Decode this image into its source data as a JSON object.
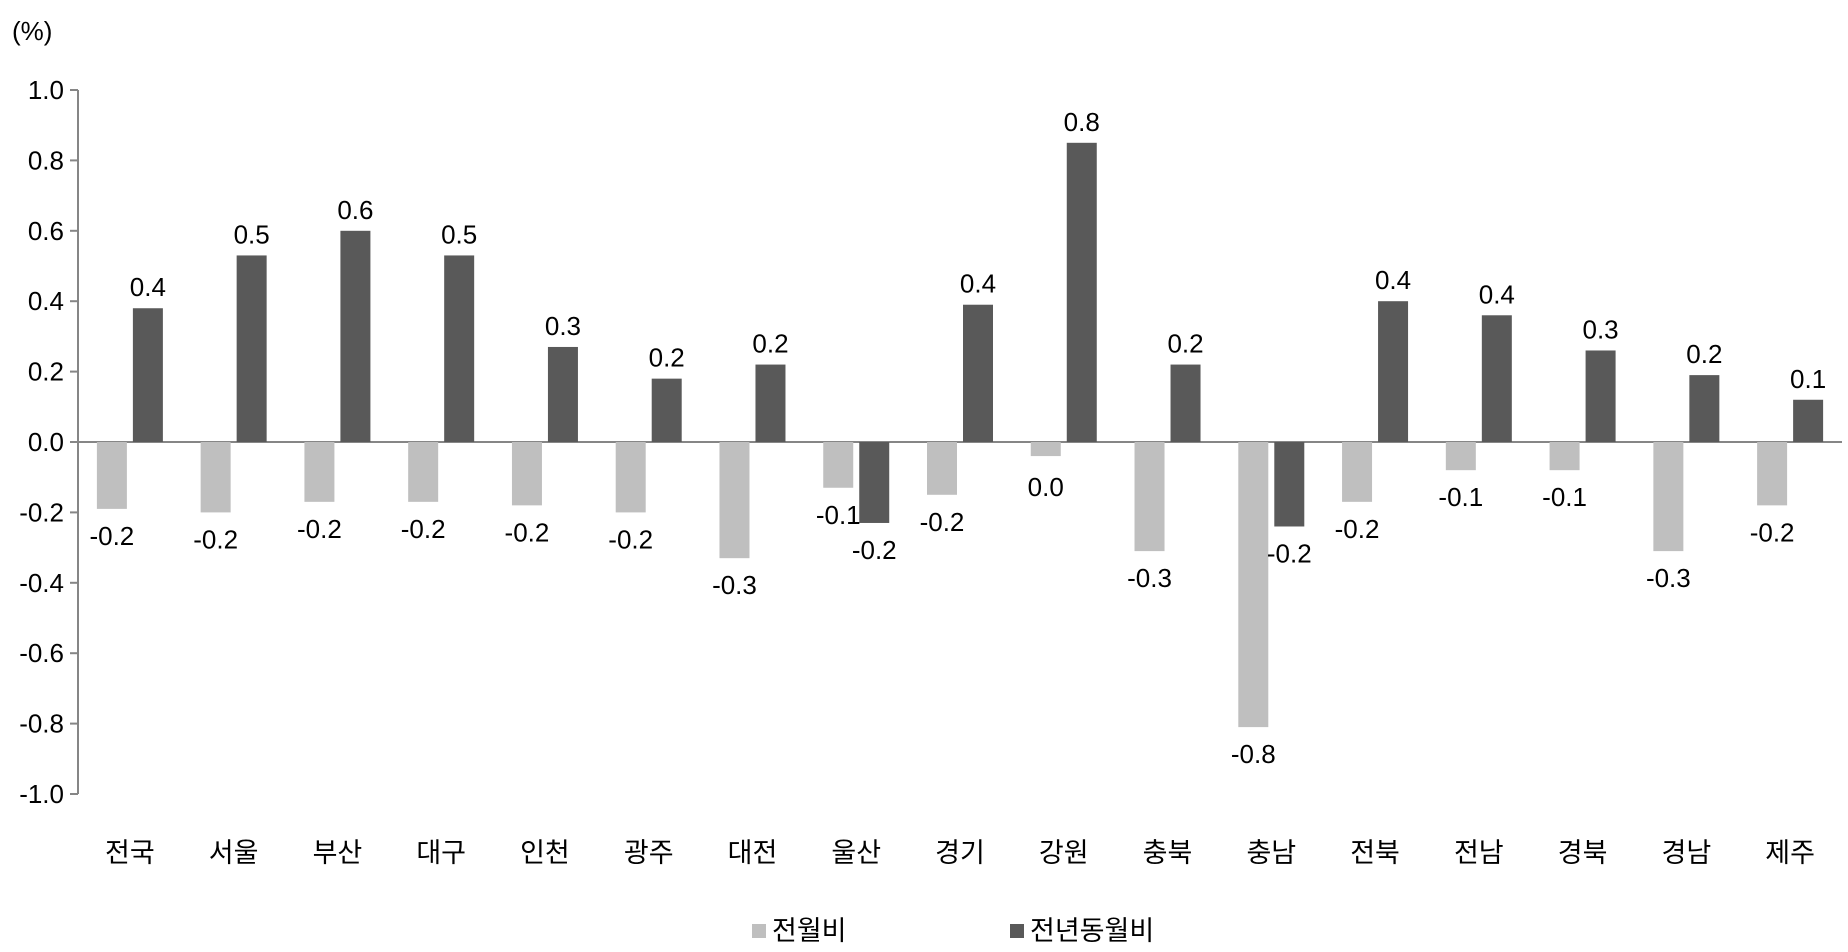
{
  "chart_data": {
    "type": "bar",
    "unit_label": "(%)",
    "categories": [
      "전국",
      "서울",
      "부산",
      "대구",
      "인천",
      "광주",
      "대전",
      "울산",
      "경기",
      "강원",
      "충북",
      "충남",
      "전북",
      "전남",
      "경북",
      "경남",
      "제주"
    ],
    "series": [
      {
        "name": "전월비",
        "color": "#bfbfbf",
        "values": [
          -0.19,
          -0.2,
          -0.17,
          -0.17,
          -0.18,
          -0.2,
          -0.33,
          -0.13,
          -0.15,
          -0.04,
          -0.31,
          -0.81,
          -0.17,
          -0.08,
          -0.08,
          -0.31,
          -0.18
        ],
        "labels": [
          "-0.2",
          "-0.2",
          "-0.2",
          "-0.2",
          "-0.2",
          "-0.2",
          "-0.3",
          "-0.1",
          "-0.2",
          "0.0",
          "-0.3",
          "-0.8",
          "-0.2",
          "-0.1",
          "-0.1",
          "-0.3",
          "-0.2"
        ]
      },
      {
        "name": "전년동월비",
        "color": "#595959",
        "values": [
          0.38,
          0.53,
          0.6,
          0.53,
          0.27,
          0.18,
          0.22,
          -0.23,
          0.39,
          0.85,
          0.22,
          -0.24,
          0.4,
          0.36,
          0.26,
          0.19,
          0.12
        ],
        "labels": [
          "0.4",
          "0.5",
          "0.6",
          "0.5",
          "0.3",
          "0.2",
          "0.2",
          "-0.2",
          "0.4",
          "0.8",
          "0.2",
          "-0.2",
          "0.4",
          "0.4",
          "0.3",
          "0.2",
          "0.1"
        ]
      }
    ],
    "ylim": [
      -1.0,
      1.0
    ],
    "yticks": [
      "1.0",
      "0.8",
      "0.6",
      "0.4",
      "0.2",
      "0.0",
      "-0.2",
      "-0.4",
      "-0.6",
      "-0.8",
      "-1.0"
    ],
    "grid": false,
    "legend_position": "bottom-center"
  }
}
